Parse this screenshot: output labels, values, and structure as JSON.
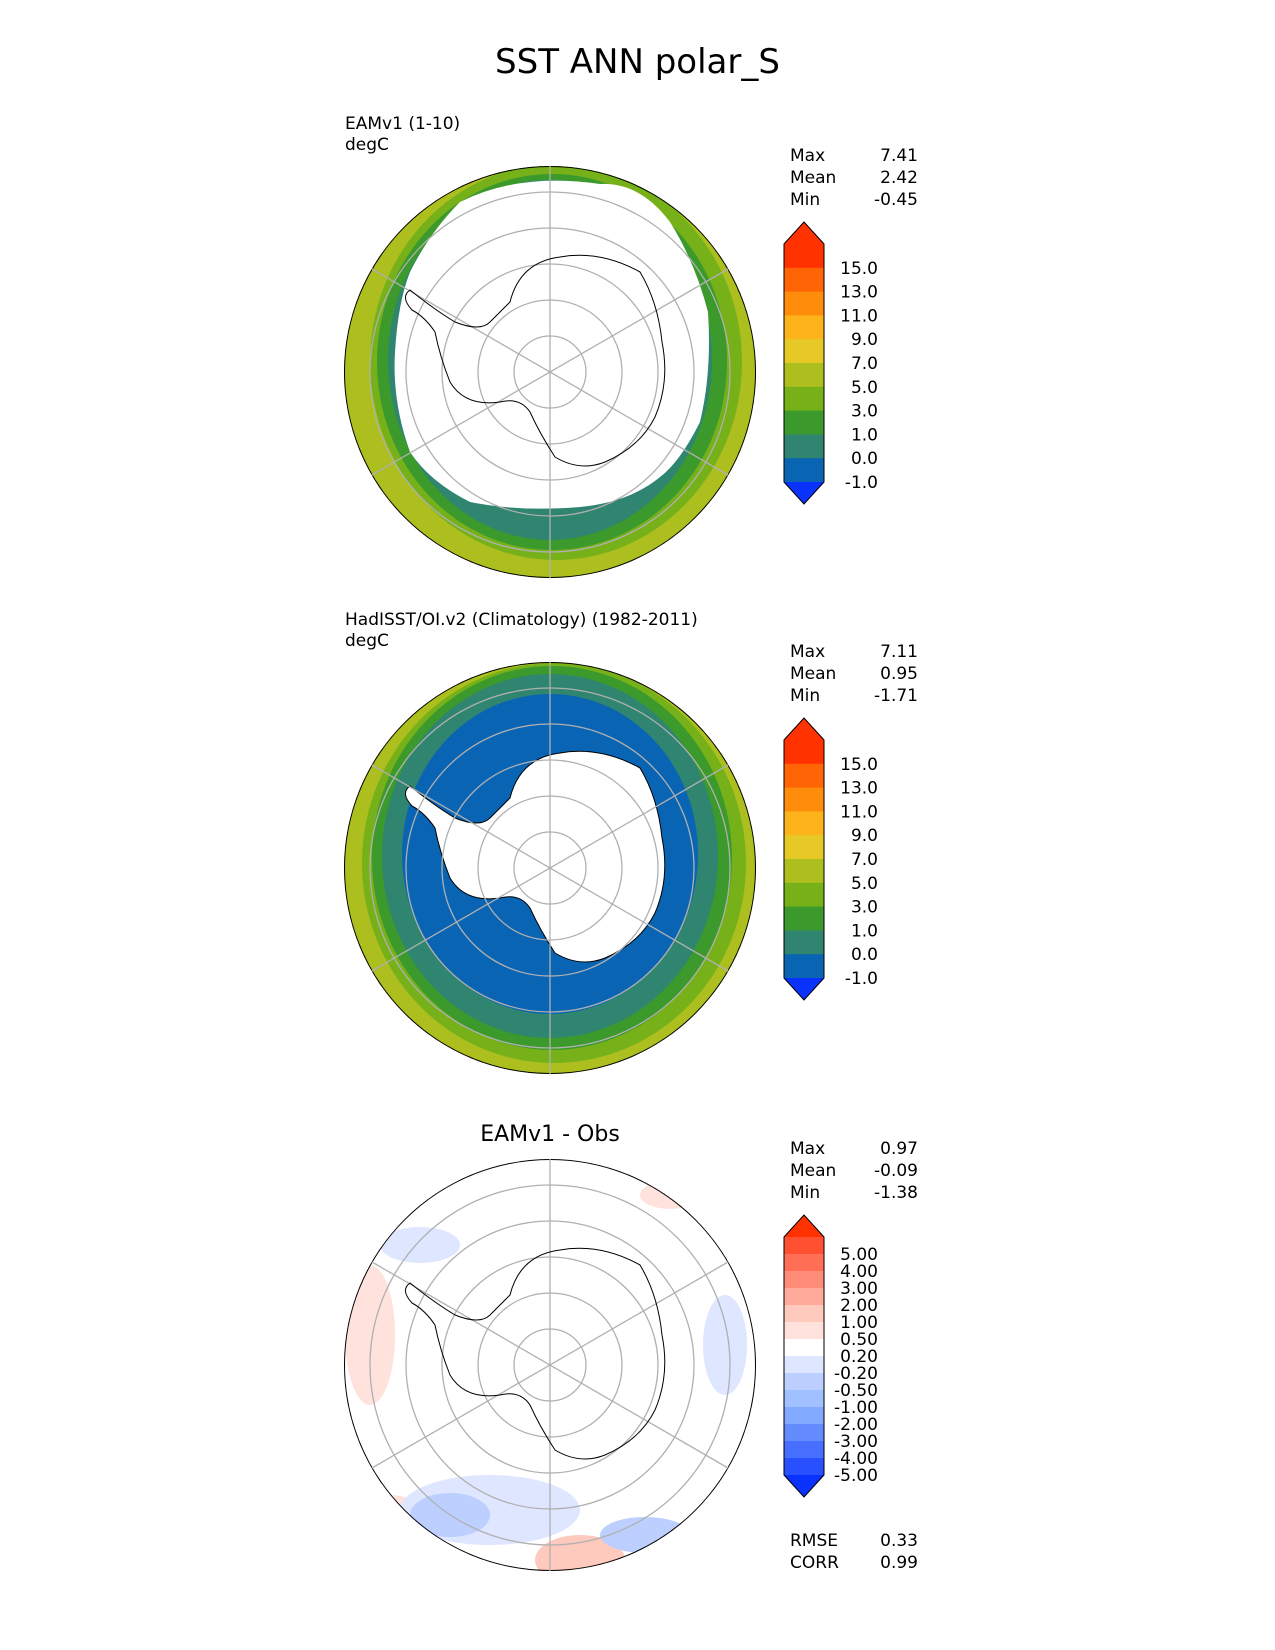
{
  "title": "SST ANN polar_S",
  "panels": [
    {
      "id": "test",
      "label_line1": "EAMv1 (1-10)",
      "label_line2": "degC",
      "stats": [
        {
          "name": "Max",
          "value": "7.41"
        },
        {
          "name": "Mean",
          "value": "2.42"
        },
        {
          "name": "Min",
          "value": "-0.45"
        }
      ],
      "colorbar": {
        "colors": [
          "#0a32ff",
          "#0a64b4",
          "#2f8570",
          "#3b9a2b",
          "#76b11a",
          "#adbf1f",
          "#e6c827",
          "#fdb41a",
          "#ff8c0a",
          "#ff6405",
          "#ff3200",
          "#ff3200"
        ],
        "ticks": [
          "15.0",
          "13.0",
          "11.0",
          "9.0",
          "7.0",
          "5.0",
          "3.0",
          "1.0",
          "0.0",
          "-1.0"
        ]
      }
    },
    {
      "id": "ref",
      "label_line1": "HadISST/OI.v2 (Climatology) (1982-2011)",
      "label_line2": "degC",
      "stats": [
        {
          "name": "Max",
          "value": "7.11"
        },
        {
          "name": "Mean",
          "value": "0.95"
        },
        {
          "name": "Min",
          "value": "-1.71"
        }
      ],
      "colorbar": {
        "colors": [
          "#0a32ff",
          "#0a64b4",
          "#2f8570",
          "#3b9a2b",
          "#76b11a",
          "#adbf1f",
          "#e6c827",
          "#fdb41a",
          "#ff8c0a",
          "#ff6405",
          "#ff3200",
          "#ff3200"
        ],
        "ticks": [
          "15.0",
          "13.0",
          "11.0",
          "9.0",
          "7.0",
          "5.0",
          "3.0",
          "1.0",
          "0.0",
          "-1.0"
        ]
      }
    },
    {
      "id": "diff",
      "center_title": "EAMv1 - Obs",
      "stats": [
        {
          "name": "Max",
          "value": "0.97"
        },
        {
          "name": "Mean",
          "value": "-0.09"
        },
        {
          "name": "Min",
          "value": "-1.38"
        }
      ],
      "extra_stats": [
        {
          "name": "RMSE",
          "value": "0.33"
        },
        {
          "name": "CORR",
          "value": "0.99"
        }
      ],
      "colorbar": {
        "colors": [
          "#0a32ff",
          "#2850ff",
          "#466eff",
          "#648cff",
          "#82aaff",
          "#a0c0ff",
          "#bccfff",
          "#dfe6ff",
          "#ffffff",
          "#ffe2dc",
          "#ffcabe",
          "#ffaa9a",
          "#ff8c78",
          "#ff6e55",
          "#ff5032",
          "#ff3200"
        ],
        "ticks": [
          "5.00",
          "4.00",
          "3.00",
          "2.00",
          "1.00",
          "0.50",
          "0.20",
          "-0.20",
          "-0.50",
          "-1.00",
          "-2.00",
          "-3.00",
          "-4.00",
          "-5.00"
        ]
      }
    }
  ]
}
